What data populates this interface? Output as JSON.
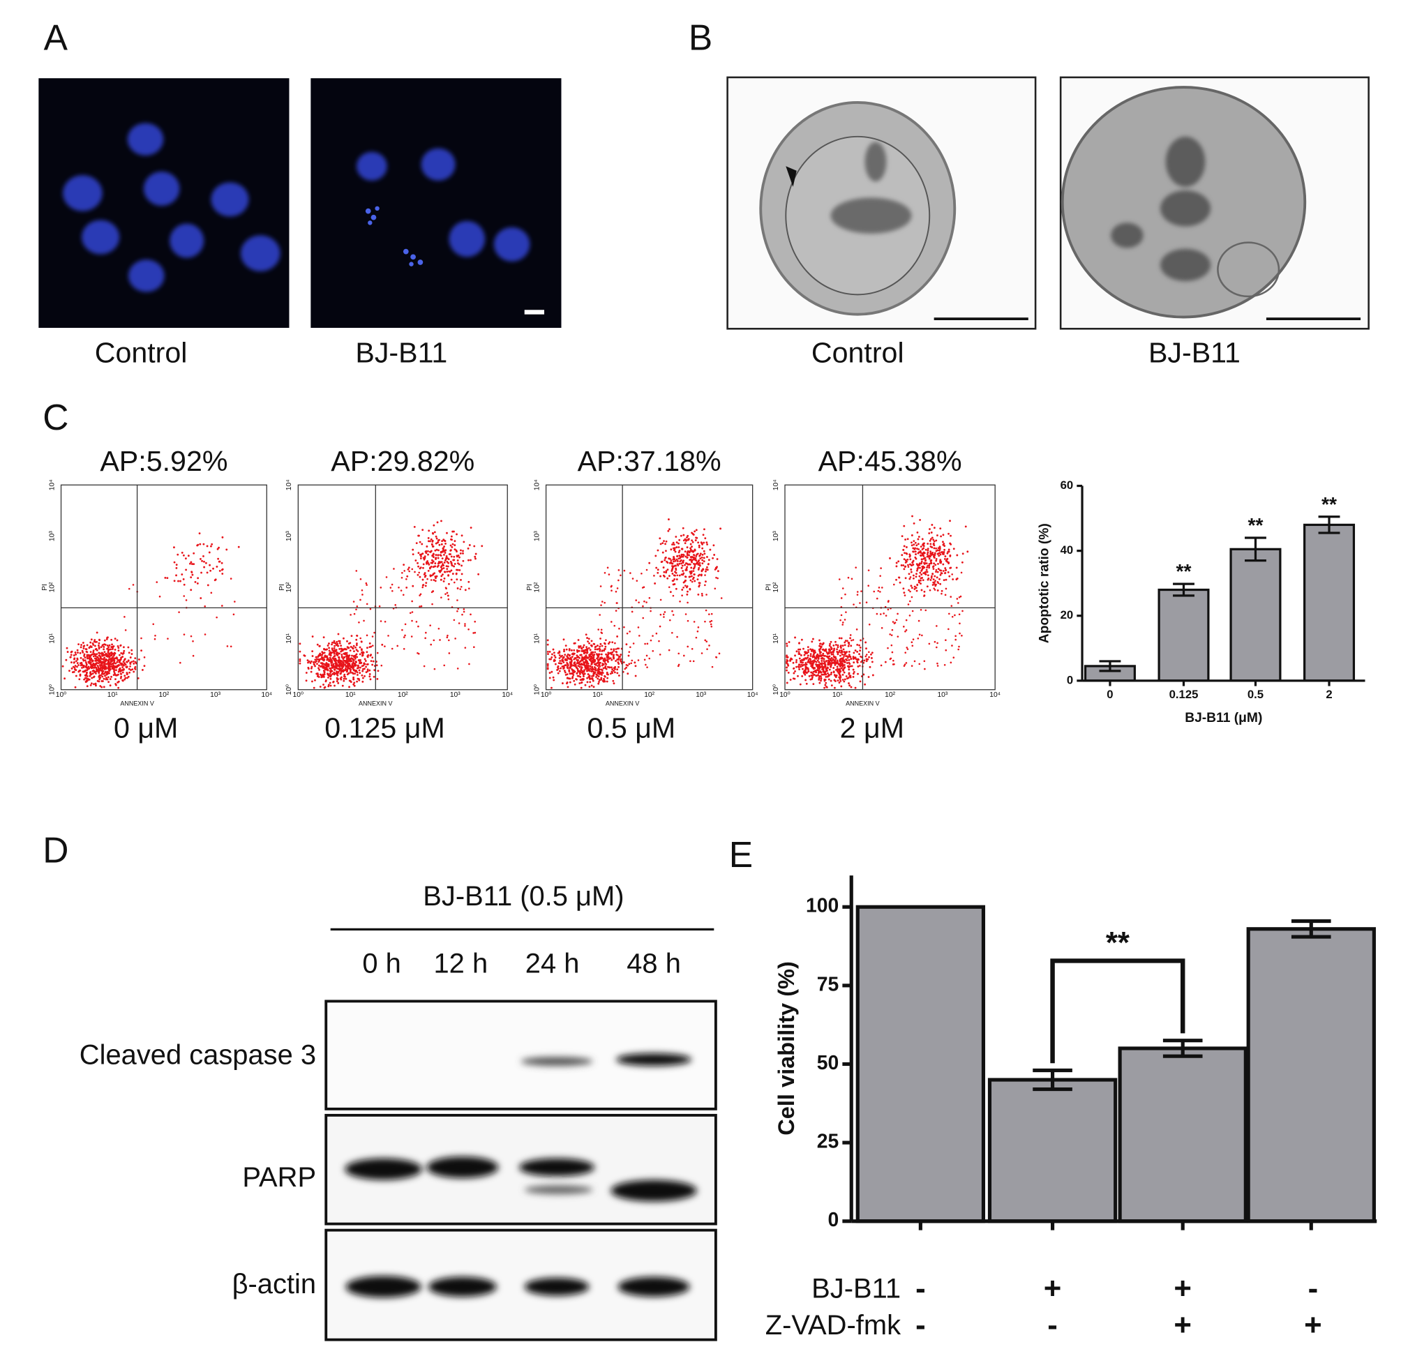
{
  "panels": {
    "A": {
      "label": "A",
      "captions": [
        "Control",
        "BJ-B11"
      ]
    },
    "B": {
      "label": "B",
      "captions": [
        "Control",
        "BJ-B11"
      ]
    },
    "C": {
      "label": "C",
      "flow": [
        {
          "title": "AP:5.92%",
          "dose": "0 μM"
        },
        {
          "title": "AP:29.82%",
          "dose": "0.125 μM"
        },
        {
          "title": "AP:37.18%",
          "dose": "0.5 μM"
        },
        {
          "title": "AP:45.38%",
          "dose": "2 μM"
        }
      ],
      "x_axis_label": "ANNEXIN V",
      "y_axis_label": "PI",
      "log_ticks": [
        "10⁰",
        "10¹",
        "10²",
        "10³",
        "10⁴"
      ]
    },
    "D": {
      "label": "D",
      "treatment": "BJ-B11 (0.5 μM)",
      "times": [
        "0 h",
        "12 h",
        "24 h",
        "48 h"
      ],
      "bands": [
        "Cleaved caspase 3",
        "PARP",
        "β-actin"
      ]
    },
    "E": {
      "label": "E",
      "conditions": [
        {
          "name": "BJ-B11",
          "values": [
            "-",
            "+",
            "+",
            "-"
          ]
        },
        {
          "name": "Z-VAD-fmk",
          "values": [
            "-",
            "-",
            "+",
            "+"
          ]
        }
      ]
    }
  },
  "chart_data": [
    {
      "type": "bar",
      "categories": [
        "0",
        "0.125",
        "0.5",
        "2"
      ],
      "values": [
        4.5,
        28,
        40.5,
        48
      ],
      "errors": [
        1.5,
        1.8,
        3.5,
        2.5
      ],
      "significance": [
        null,
        "**",
        "**",
        "**"
      ],
      "color": "#9c9ca2",
      "xlabel": "BJ-B11 (μM)",
      "ylabel": "Apoptotic ratio (%)",
      "ylim": [
        0,
        60
      ],
      "yticks": [
        0,
        20,
        40,
        60
      ]
    },
    {
      "type": "bar",
      "values": [
        100,
        45,
        55,
        93
      ],
      "errors": [
        null,
        3,
        2.5,
        2.5
      ],
      "annotations": [
        {
          "text": "**"
        }
      ],
      "color": "#9c9ca2",
      "ylabel": "Cell viability (%)",
      "ylim": [
        0,
        110
      ],
      "yticks": [
        0,
        25,
        50,
        75,
        100
      ]
    }
  ]
}
